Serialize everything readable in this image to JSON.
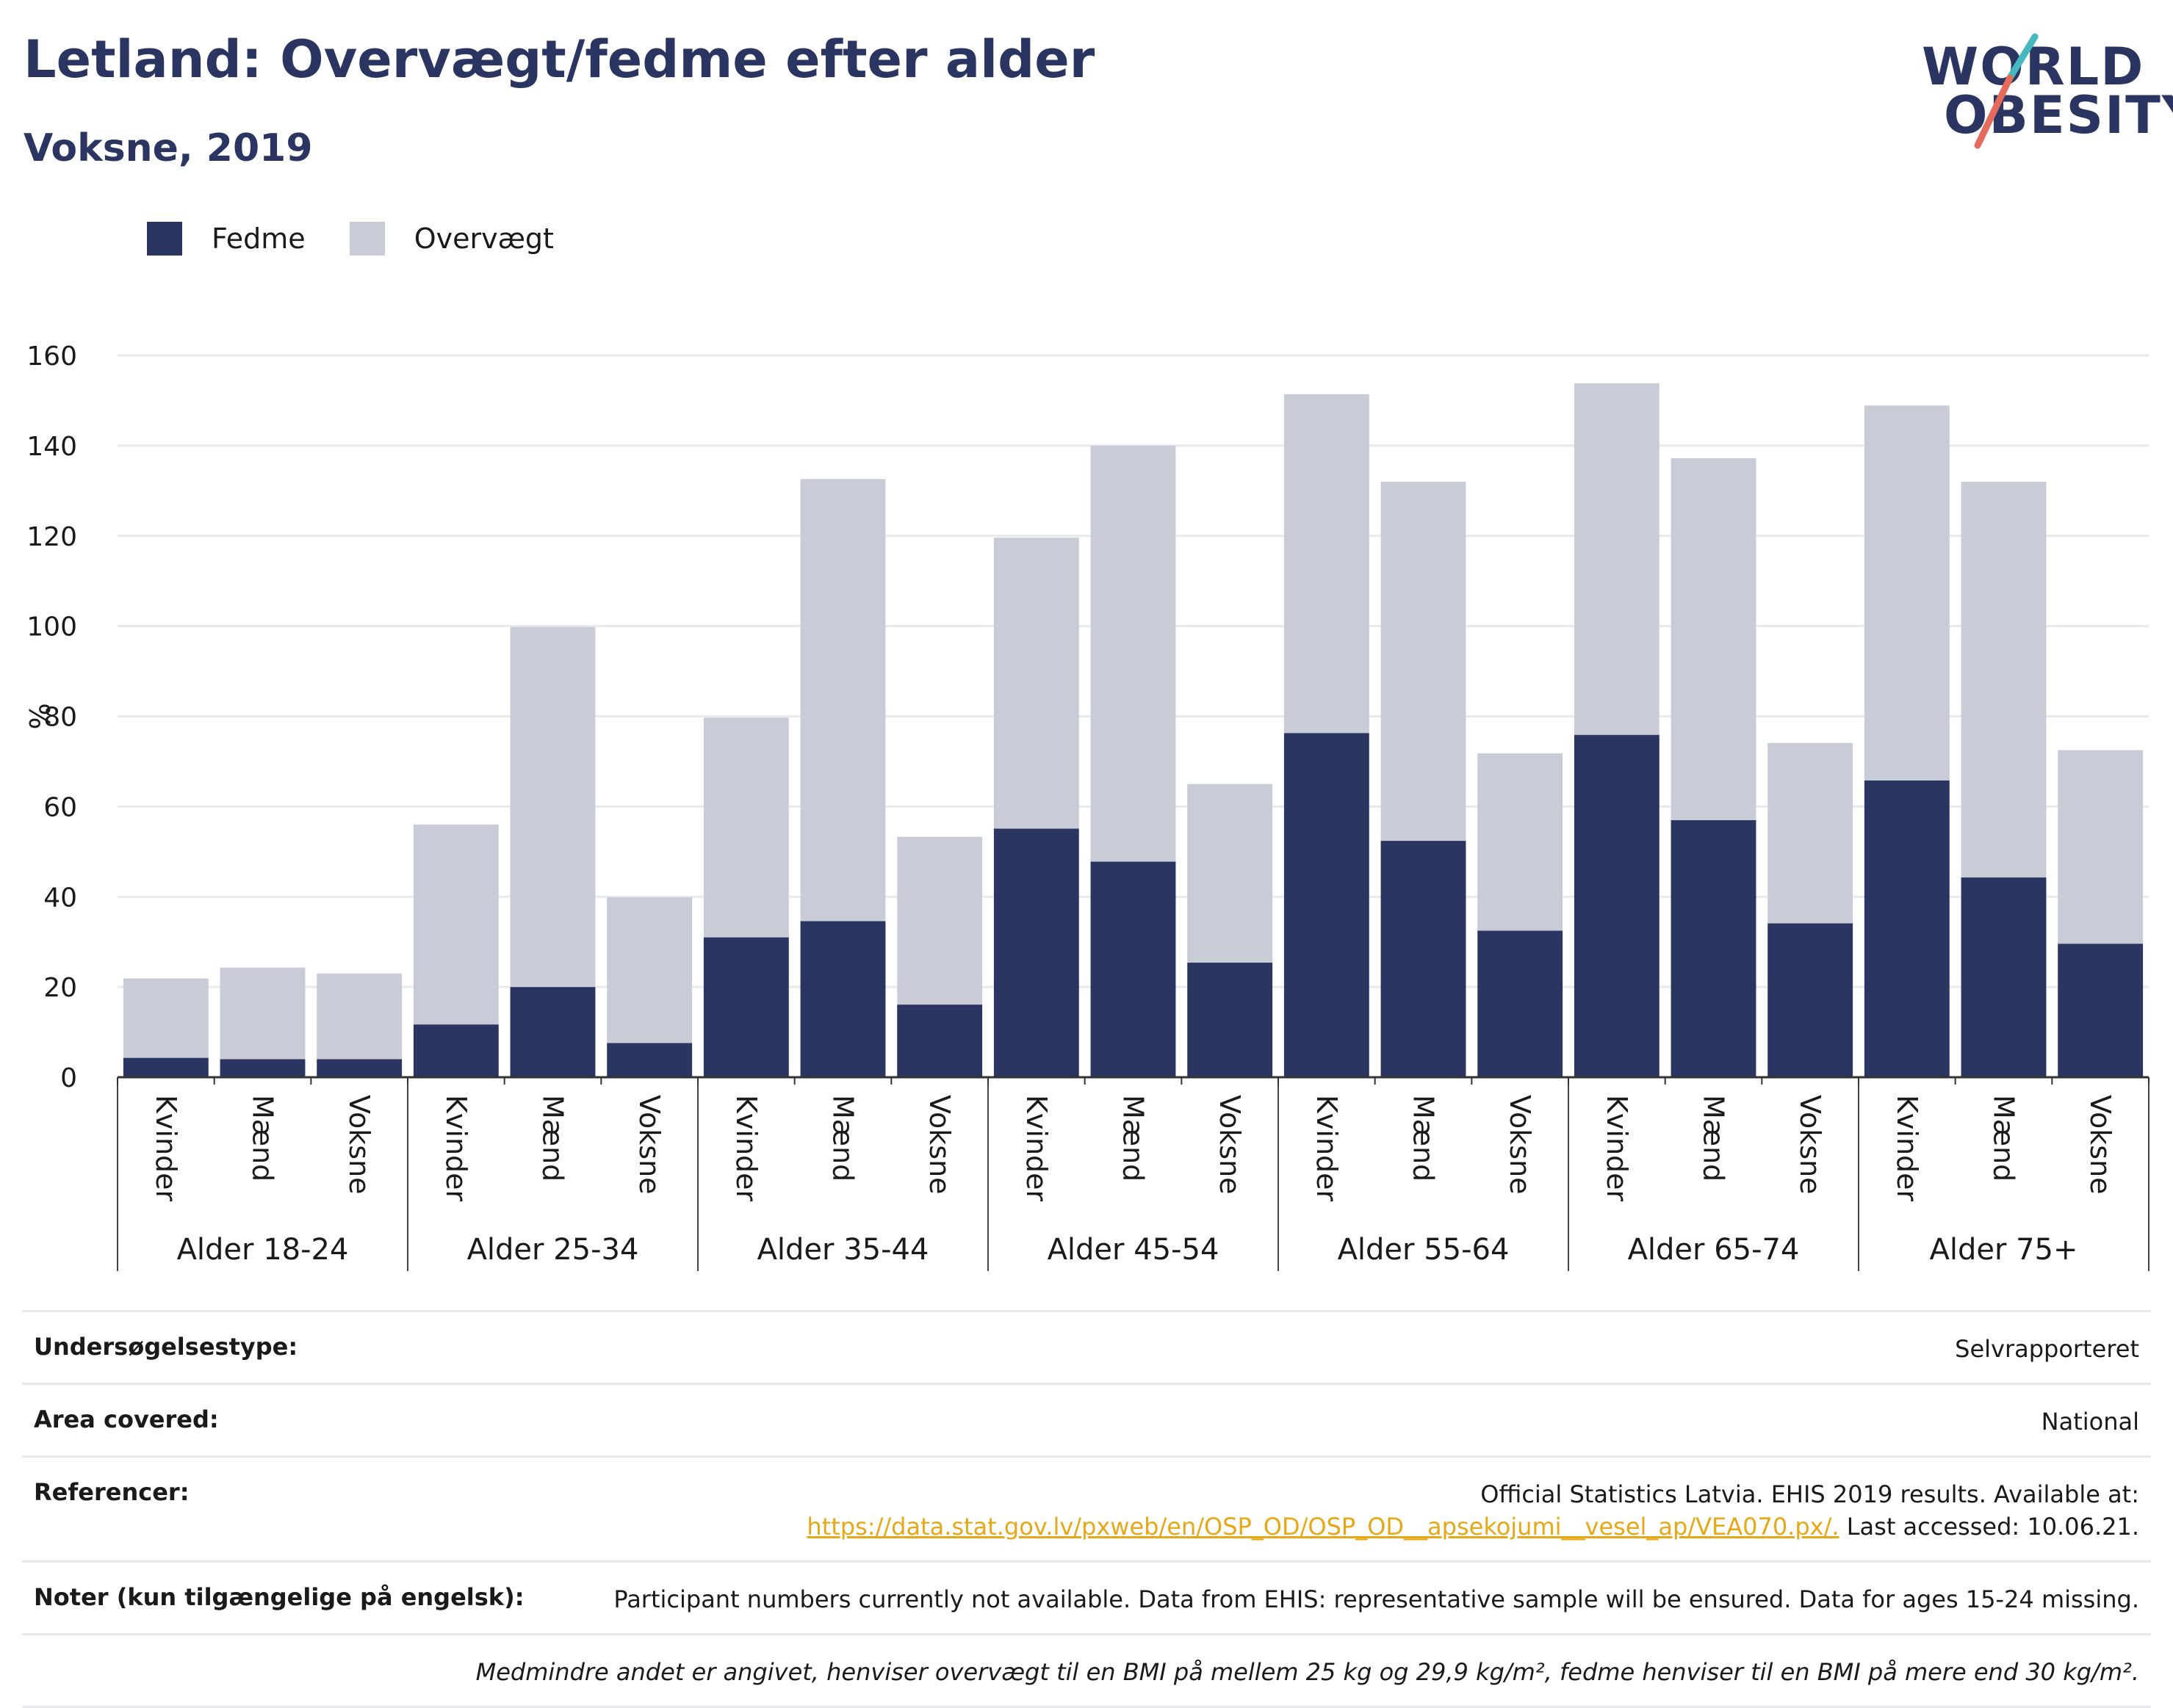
{
  "header": {
    "title": "Letland: Overvægt/fedme efter alder",
    "subtitle": "Voksne, 2019"
  },
  "logo": {
    "line1": "WORLD",
    "line2": "OBESITY"
  },
  "colors": {
    "fedme": "#2a3562",
    "overvaegt": "#c9cbd6",
    "brand_dark": "#2a3562",
    "accent_teal": "#45b8c0",
    "accent_red": "#e56c5c"
  },
  "legend": [
    {
      "label": "Fedme",
      "color": "#2a3562"
    },
    {
      "label": "Overvægt",
      "color": "#c9cbd6"
    }
  ],
  "chart_data": {
    "type": "bar",
    "stacked": true,
    "ylabel": "%",
    "ylim": [
      0,
      160
    ],
    "yticks": [
      0,
      20,
      40,
      60,
      80,
      100,
      120,
      140,
      160
    ],
    "grid": true,
    "legend_position": "top-left",
    "groups": [
      "Alder 18-24",
      "Alder 25-34",
      "Alder 35-44",
      "Alder 45-54",
      "Alder 55-64",
      "Alder 65-74",
      "Alder 75+"
    ],
    "subcategories": [
      "Kvinder",
      "Mænd",
      "Voksne"
    ],
    "series": [
      {
        "name": "Fedme",
        "values": [
          4.3,
          4,
          4,
          11.7,
          20,
          7.6,
          31,
          34.6,
          16.1,
          55.1,
          47.8,
          25.4,
          76.3,
          52.4,
          32.5,
          75.9,
          57,
          34.1,
          65.8,
          44.3,
          29.6
        ]
      },
      {
        "name": "Overvægt",
        "values": [
          17.6,
          20.3,
          19,
          44.3,
          79.8,
          32.3,
          48.7,
          98,
          37.2,
          64.5,
          92.2,
          39.6,
          75.1,
          79.6,
          39.3,
          77.9,
          80.2,
          40,
          83.1,
          87.7,
          42.9
        ]
      }
    ]
  },
  "info_table": {
    "survey_type": {
      "key": "Undersøgelsestype:",
      "value": "Selvrapporteret"
    },
    "area": {
      "key": "Area covered:",
      "value": "National"
    },
    "references": {
      "key": "Referencer:",
      "line1": "Official Statistics Latvia. EHIS 2019 results. Available at:",
      "url": "https://data.stat.gov.lv/pxweb/en/OSP_OD/OSP_OD__apsekojumi__vesel_ap/VEA070.px/.",
      "after_url": " Last accessed: 10.06.21."
    },
    "notes": {
      "key": "Noter (kun tilgængelige på engelsk):",
      "value": "Participant numbers currently not available. Data from EHIS: representative sample will be ensured. Data for ages 15-24 missing."
    },
    "footnote": "Medmindre andet er angivet, henviser overvægt til en BMI på mellem 25 kg og 29,9 kg/m², fedme henviser til en BMI på mere end 30 kg/m²."
  }
}
